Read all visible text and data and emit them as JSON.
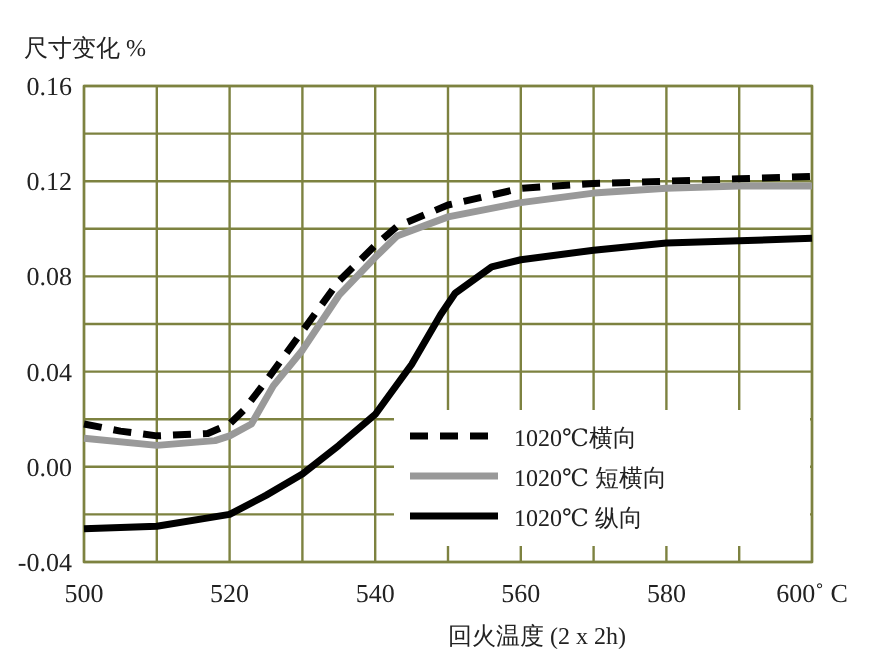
{
  "chart_data": {
    "type": "line",
    "ylabel": "尺寸变化 %",
    "xlabel": "回火温度 (2 x 2h)",
    "xlim": [
      500,
      600
    ],
    "ylim": [
      -0.04,
      0.16
    ],
    "xticks": [
      500,
      {
        "value": 510,
        "label": null
      },
      520,
      {
        "value": 530,
        "label": null
      },
      540,
      {
        "value": 550,
        "label": null
      },
      560,
      {
        "value": 570,
        "label": null
      },
      580,
      {
        "value": 590,
        "label": null
      },
      {
        "value": 600,
        "label": "600˚ C"
      }
    ],
    "yticks": [
      {
        "value": -0.04,
        "label": "-0.04"
      },
      {
        "value": -0.02,
        "label": null
      },
      {
        "value": 0,
        "label": "0.00"
      },
      {
        "value": 0.02,
        "label": null
      },
      0.04,
      {
        "value": 0.06,
        "label": null
      },
      0.08,
      {
        "value": 0.1,
        "label": null
      },
      0.12,
      {
        "value": 0.14,
        "label": null
      },
      0.16
    ],
    "grid": true,
    "legend": "bottom right",
    "series": [
      {
        "name": "1020℃横向",
        "color": "#000000",
        "line_style": "dashed",
        "x": [
          500,
          505,
          510,
          517,
          520,
          522,
          525,
          530,
          535,
          540,
          543,
          550,
          560,
          570,
          580,
          590,
          600
        ],
        "values": [
          0.018,
          0.015,
          0.013,
          0.014,
          0.018,
          0.024,
          0.036,
          0.057,
          0.078,
          0.093,
          0.101,
          0.11,
          0.117,
          0.119,
          0.12,
          0.121,
          0.122
        ]
      },
      {
        "name": "1020℃ 短横向",
        "color": "#999999",
        "line_style": "solid",
        "x": [
          500,
          510,
          518,
          520,
          523,
          526,
          530,
          535,
          540,
          543,
          550,
          560,
          570,
          580,
          590,
          600
        ],
        "values": [
          0.012,
          0.009,
          0.011,
          0.013,
          0.018,
          0.034,
          0.049,
          0.072,
          0.088,
          0.097,
          0.105,
          0.111,
          0.115,
          0.117,
          0.118,
          0.118
        ]
      },
      {
        "name": "1020℃ 纵向",
        "color": "#000000",
        "line_style": "solid",
        "x": [
          500,
          510,
          520,
          525,
          530,
          535,
          540,
          545,
          549,
          551,
          556,
          560,
          570,
          580,
          590,
          600
        ],
        "values": [
          -0.026,
          -0.025,
          -0.02,
          -0.012,
          -0.003,
          0.009,
          0.022,
          0.043,
          0.064,
          0.073,
          0.084,
          0.087,
          0.091,
          0.094,
          0.095,
          0.096
        ]
      }
    ]
  }
}
